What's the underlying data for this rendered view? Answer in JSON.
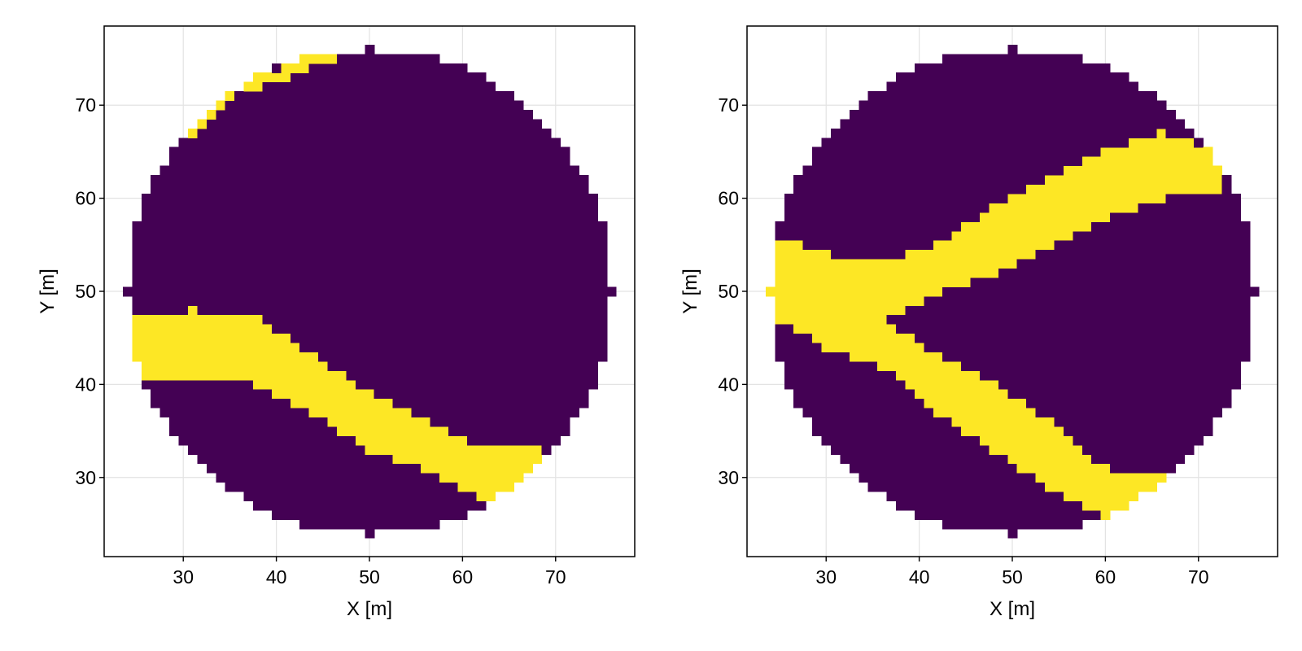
{
  "chart_data": [
    {
      "type": "heatmap",
      "panel": "left",
      "xlabel": "X [m]",
      "ylabel": "Y [m]",
      "xlim": [
        21.5,
        78.5
      ],
      "ylim": [
        21.5,
        78.5
      ],
      "xticks": [
        30,
        40,
        50,
        60,
        70
      ],
      "yticks": [
        30,
        40,
        50,
        60,
        70
      ],
      "grid": true,
      "legend": "none",
      "colors": {
        "background": "#440154",
        "channel": "#fde725"
      },
      "disk": {
        "center": [
          50,
          50
        ],
        "radius": 26
      },
      "channel_bands": [
        {
          "x": [
            25,
            31,
            38,
            44,
            50,
            56,
            62,
            68
          ],
          "upper": [
            47,
            48,
            47,
            43,
            39,
            36,
            33,
            33
          ],
          "lower": [
            40,
            41,
            40,
            37,
            33,
            31,
            28,
            26
          ]
        },
        {
          "x": [
            31,
            33,
            35,
            38,
            41,
            43,
            46
          ],
          "upper": [
            68.5,
            70.5,
            72,
            73,
            74,
            75,
            75.5
          ],
          "lower": [
            67,
            69,
            71,
            72,
            73,
            74,
            74.5
          ]
        }
      ]
    },
    {
      "type": "heatmap",
      "panel": "right",
      "xlabel": "X [m]",
      "ylabel": "Y [m]",
      "xlim": [
        21.5,
        78.5
      ],
      "ylim": [
        21.5,
        78.5
      ],
      "xticks": [
        30,
        40,
        50,
        60,
        70
      ],
      "yticks": [
        30,
        40,
        50,
        60,
        70
      ],
      "grid": true,
      "legend": "none",
      "colors": {
        "background": "#440154",
        "channel": "#fde725"
      },
      "disk": {
        "center": [
          50,
          50
        ],
        "radius": 26
      },
      "channel_bands": [
        {
          "x": [
            24,
            30,
            36,
            42,
            48,
            54,
            60,
            66,
            72
          ],
          "upper": [
            56,
            54,
            53,
            55,
            59,
            62,
            65,
            67,
            65
          ],
          "lower": [
            47,
            47,
            46.5,
            50,
            52,
            55,
            58,
            60,
            61
          ]
        },
        {
          "x": [
            25,
            30,
            36,
            42,
            48,
            54,
            60,
            66
          ],
          "upper": [
            52,
            48,
            47,
            43,
            40,
            36,
            31,
            30
          ],
          "lower": [
            47,
            44,
            42,
            37,
            33,
            29,
            26,
            25
          ]
        }
      ]
    }
  ]
}
